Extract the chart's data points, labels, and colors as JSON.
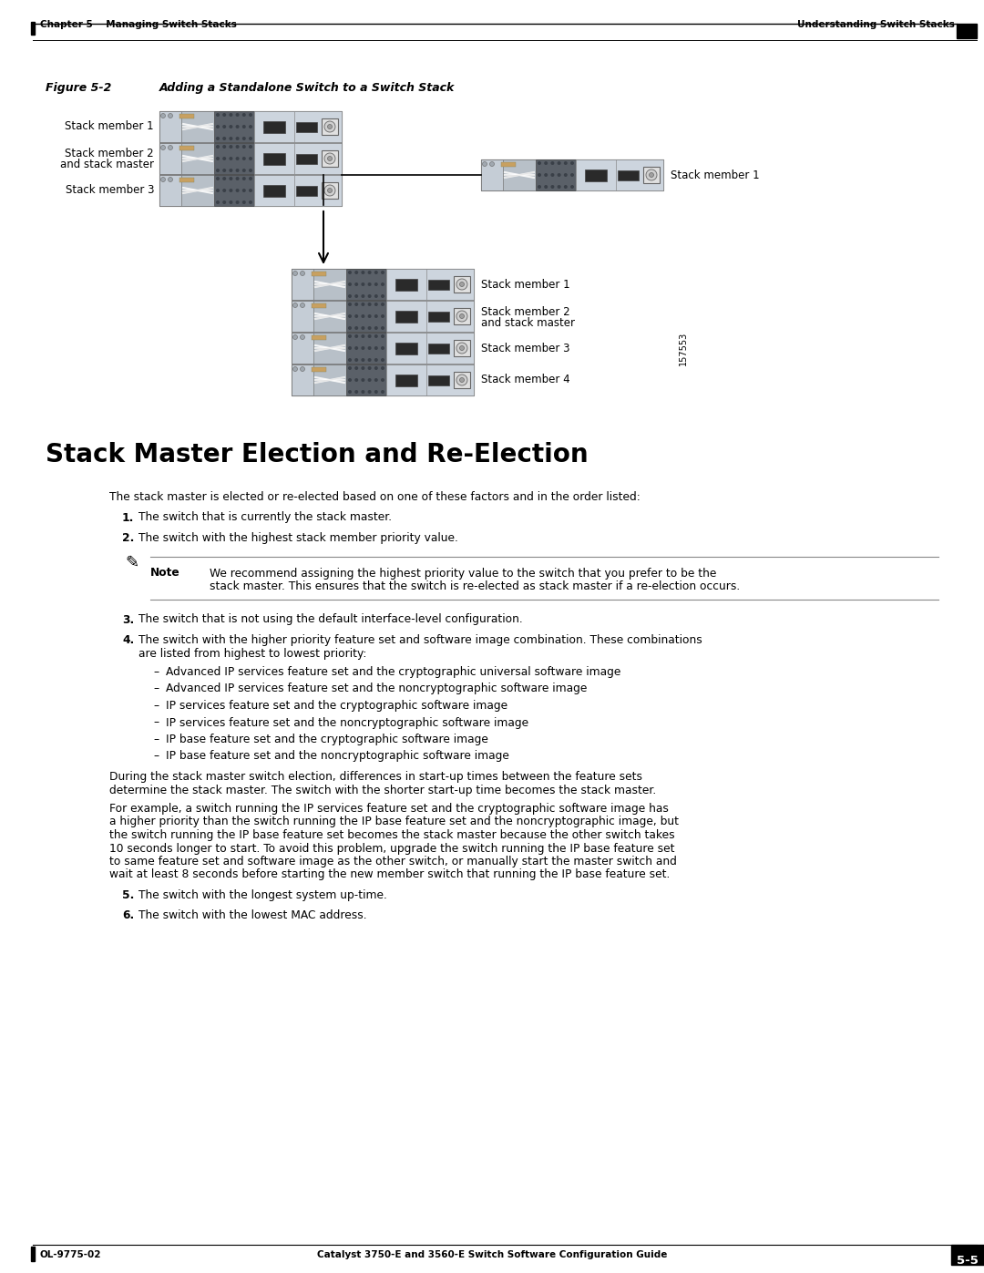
{
  "page_bg": "#ffffff",
  "header_left": "Chapter 5    Managing Switch Stacks",
  "header_right": "Understanding Switch Stacks",
  "figure_caption_label": "Figure 5-2",
  "figure_caption_text": "Adding a Standalone Switch to a Switch Stack",
  "section_title": "Stack Master Election and Re-Election",
  "intro_text": "The stack master is elected or re-elected based on one of these factors and in the order listed:",
  "item1": "The switch that is currently the stack master.",
  "item2": "The switch with the highest stack member priority value.",
  "note_text_line1": "We recommend assigning the highest priority value to the switch that you prefer to be the",
  "note_text_line2": "stack master. This ensures that the switch is re-elected as stack master if a re-election occurs.",
  "item3": "The switch that is not using the default interface-level configuration.",
  "item4_line1": "The switch with the higher priority feature set and software image combination. These combinations",
  "item4_line2": "are listed from highest to lowest priority:",
  "bullet1": "Advanced IP services feature set and the cryptographic universal software image",
  "bullet2": "Advanced IP services feature set and the noncryptographic software image",
  "bullet3": "IP services feature set and the cryptographic software image",
  "bullet4": "IP services feature set and the noncryptographic software image",
  "bullet5": "IP base feature set and the cryptographic software image",
  "bullet6": "IP base feature set and the noncryptographic software image",
  "para1_line1": "During the stack master switch election, differences in start-up times between the feature sets",
  "para1_line2": "determine the stack master. The switch with the shorter start-up time becomes the stack master.",
  "para2_line1": "For example, a switch running the IP services feature set and the cryptographic software image has",
  "para2_line2": "a higher priority than the switch running the IP base feature set and the noncryptographic image, but",
  "para2_line3": "the switch running the IP base feature set becomes the stack master because the other switch takes",
  "para2_line4": "10 seconds longer to start. To avoid this problem, upgrade the switch running the IP base feature set",
  "para2_line5": "to same feature set and software image as the other switch, or manually start the master switch and",
  "para2_line6": "wait at least 8 seconds before starting the new member switch that running the IP base feature set.",
  "item5": "The switch with the longest system up-time.",
  "item6": "The switch with the lowest MAC address.",
  "footer_left": "OL-9775-02",
  "footer_center": "Catalyst 3750-E and 3560-E Switch Software Configuration Guide",
  "footer_right": "5-5",
  "label_sm1": "Stack member 1",
  "label_sm2a": "Stack member 2",
  "label_sm2b": "and stack master",
  "label_sm3": "Stack member 3",
  "label_sm1_right": "Stack member 1",
  "label_bot_sm1": "Stack member 1",
  "label_bot_sm2a": "Stack member 2",
  "label_bot_sm2b": "and stack master",
  "label_bot_sm3": "Stack member 3",
  "label_bot_sm4": "Stack member 4",
  "figure_num": "157553",
  "sw_body_color": "#d4dde6",
  "sw_left_color": "#c8cfd6",
  "sw_mid_color": "#8a9098",
  "sw_edge_color": "#555555",
  "sw_cable_color": "#ffffff"
}
